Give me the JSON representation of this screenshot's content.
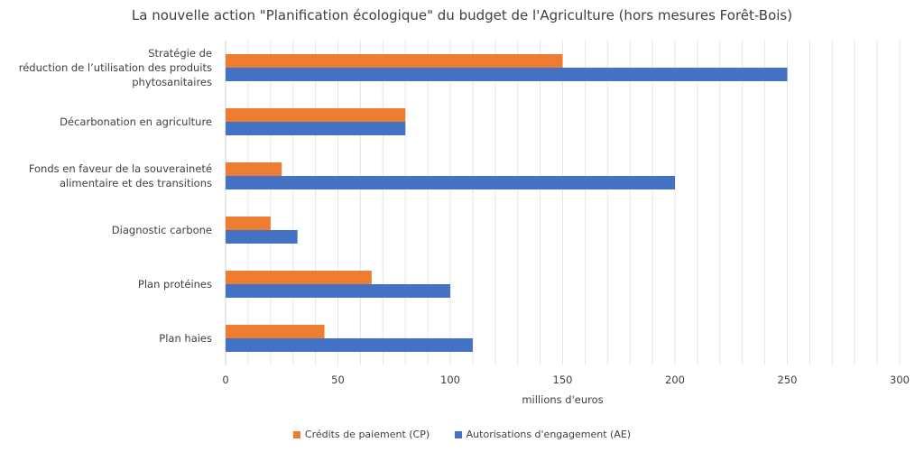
{
  "chart_data": {
    "type": "bar",
    "orientation": "horizontal",
    "title": "La nouvelle action \"Planification écologique\" du budget de l'Agriculture (hors mesures Forêt-Bois)",
    "xlabel": "millions d'euros",
    "ylabel": "",
    "xlim": [
      0,
      300
    ],
    "xticks": [
      0,
      50,
      100,
      150,
      200,
      250,
      300
    ],
    "grid": true,
    "legend_position": "bottom",
    "categories": [
      [
        "Stratégie de",
        "réduction de l’utilisation des produits",
        "phytosanitaires"
      ],
      [
        "Décarbonation en agriculture"
      ],
      [
        "Fonds en faveur de la souveraineté",
        "alimentaire et des transitions"
      ],
      [
        "Diagnostic carbone"
      ],
      [
        "Plan protéines"
      ],
      [
        "Plan haies"
      ]
    ],
    "series": [
      {
        "name": "Crédits de paiement (CP)",
        "color": "#ED7D31",
        "values": [
          150,
          80,
          25,
          20,
          65,
          44
        ]
      },
      {
        "name": "Autorisations d'engagement (AE)",
        "color": "#4472C4",
        "values": [
          250,
          80,
          200,
          32,
          100,
          110
        ]
      }
    ]
  }
}
